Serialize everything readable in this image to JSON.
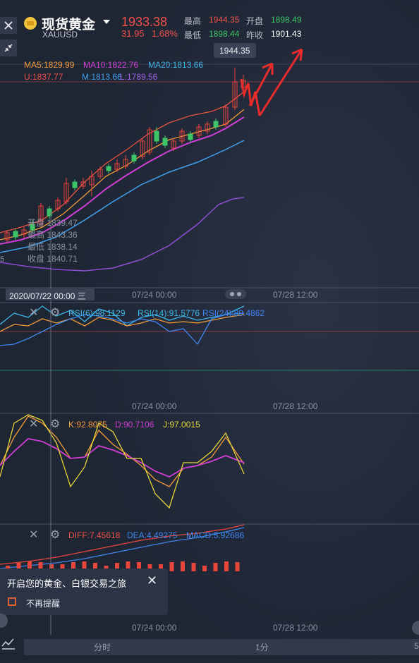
{
  "header": {
    "title": "现货黄金",
    "symbol": "XAUUSD",
    "price": "1933.38",
    "change": "31.95",
    "change_pct": "1.68%",
    "high_label": "最高",
    "high_value": "1944.35",
    "open_label": "开盘",
    "open_value": "1898.49",
    "low_label": "最低",
    "low_value": "1898.44",
    "prev_label": "昨收",
    "prev_value": "1901.43"
  },
  "indicators": {
    "ma5": "MA5:1829.99",
    "ma10": "MA10:1822.76",
    "ma20": "MA20:1813.66",
    "boll_u": "U:1837.77",
    "boll_m": "M:1813.66",
    "boll_l": "L:1789.56"
  },
  "tooltip": {
    "peak": "1944.35",
    "open": "开盘 1839.47",
    "high": "最高 1843.36",
    "low": "最低 1838.14",
    "close": "收盘 1840.71",
    "edge_fragment": "5"
  },
  "time_axis": {
    "cursor_date": "2020/07/22 00:00 三",
    "ticks": [
      "07/24 00:00",
      "07/28 12:00"
    ]
  },
  "rsi": {
    "rsi6": "RSI(6):98.1129",
    "rsi14": "RSI(14):91.5776",
    "rsi24": "RSI(24):89.4862"
  },
  "kdj": {
    "k": "K:92.8075",
    "d": "D:90.7106",
    "j": "J:97.0015"
  },
  "macd": {
    "diff": "DIFF:7.45618",
    "dea": "DEA:4.49275",
    "macd": "MACD:5.92686"
  },
  "popup": {
    "message": "开启您的黄金、白银交易之旅",
    "checkbox_label": "不再提醒"
  },
  "period_bar": {
    "left": "分时",
    "middle": "1分",
    "right_fragment": "5"
  },
  "colors": {
    "up": "#e8453c",
    "down": "#3cc466",
    "ma5": "#f39c38",
    "ma10": "#d03ed6",
    "ma20": "#3fa0ee",
    "boll": "#8c4ed2",
    "annotation": "#e82c2c"
  }
}
